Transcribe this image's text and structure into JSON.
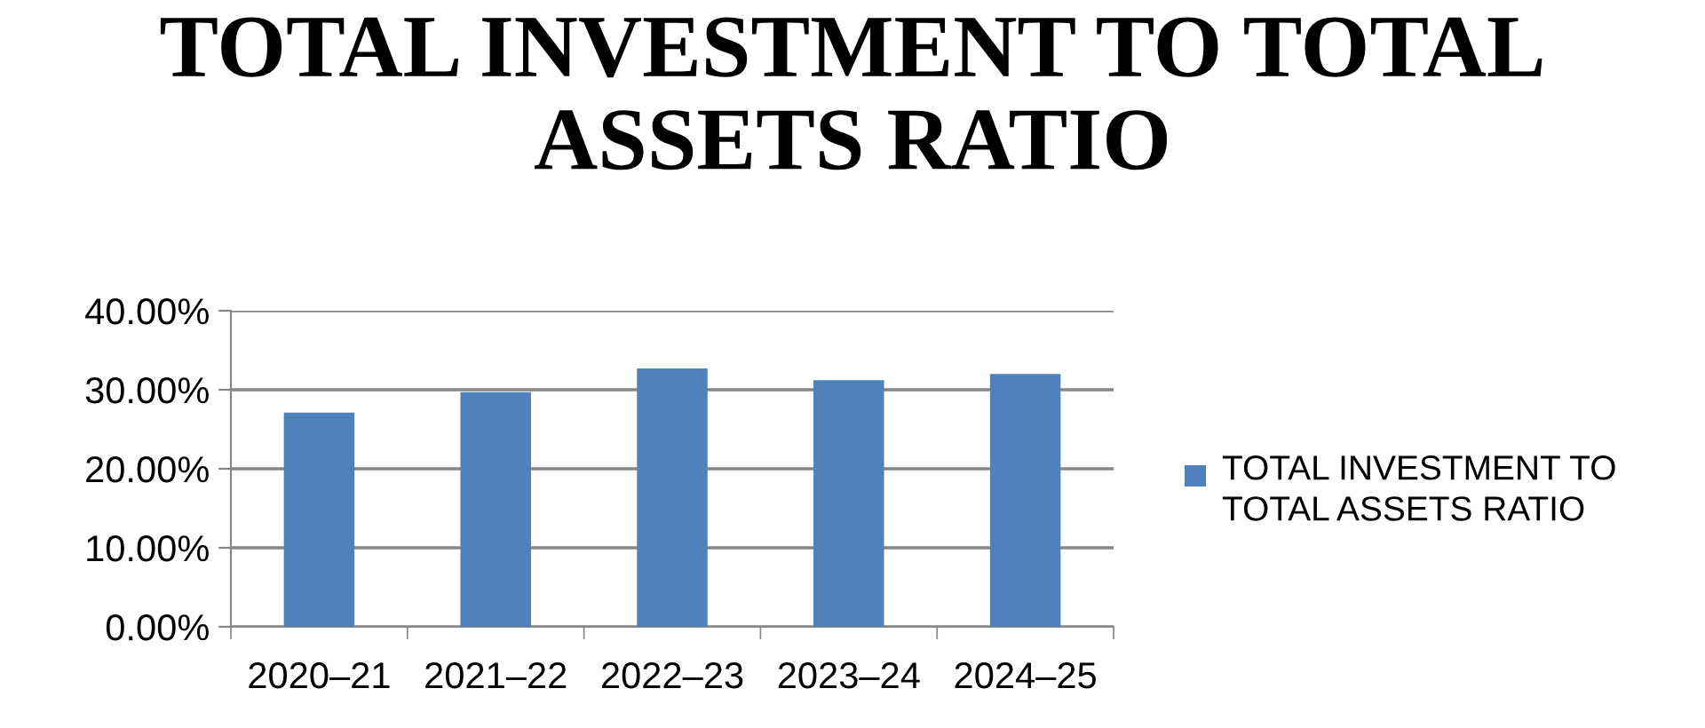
{
  "chart_data": {
    "type": "bar",
    "title": "TOTAL INVESTMENT TO TOTAL ASSETS RATIO",
    "categories": [
      "2020–21",
      "2021–22",
      "2022–23",
      "2023–24",
      "2024–25"
    ],
    "series": [
      {
        "name": "TOTAL INVESTMENT TO TOTAL ASSETS RATIO",
        "color": "#4f81bd",
        "values": [
          27.1,
          29.7,
          32.7,
          31.2,
          32.0
        ]
      }
    ],
    "ylim": [
      0,
      40
    ],
    "yticks": [
      {
        "value": 0,
        "label": "0.00%"
      },
      {
        "value": 10,
        "label": "10.00%"
      },
      {
        "value": 20,
        "label": "20.00%"
      },
      {
        "value": 30,
        "label": "30.00%"
      },
      {
        "value": 40,
        "label": "40.00%"
      }
    ],
    "grid": "y",
    "legend": "right"
  }
}
